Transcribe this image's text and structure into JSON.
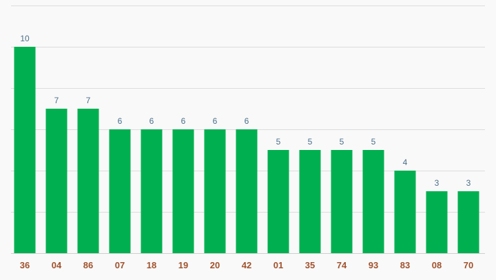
{
  "chart_data": {
    "type": "bar",
    "categories": [
      "36",
      "04",
      "86",
      "07",
      "18",
      "19",
      "20",
      "42",
      "01",
      "35",
      "74",
      "93",
      "83",
      "08",
      "70"
    ],
    "values": [
      10,
      7,
      7,
      6,
      6,
      6,
      6,
      6,
      5,
      5,
      5,
      5,
      4,
      3,
      3
    ],
    "title": "",
    "xlabel": "",
    "ylabel": "",
    "ylim": [
      0,
      12
    ],
    "grid": true,
    "legend": "none",
    "bar_color": "#00b050",
    "value_label_color": "#4a6f8a",
    "category_label_color": "#a0522d"
  }
}
